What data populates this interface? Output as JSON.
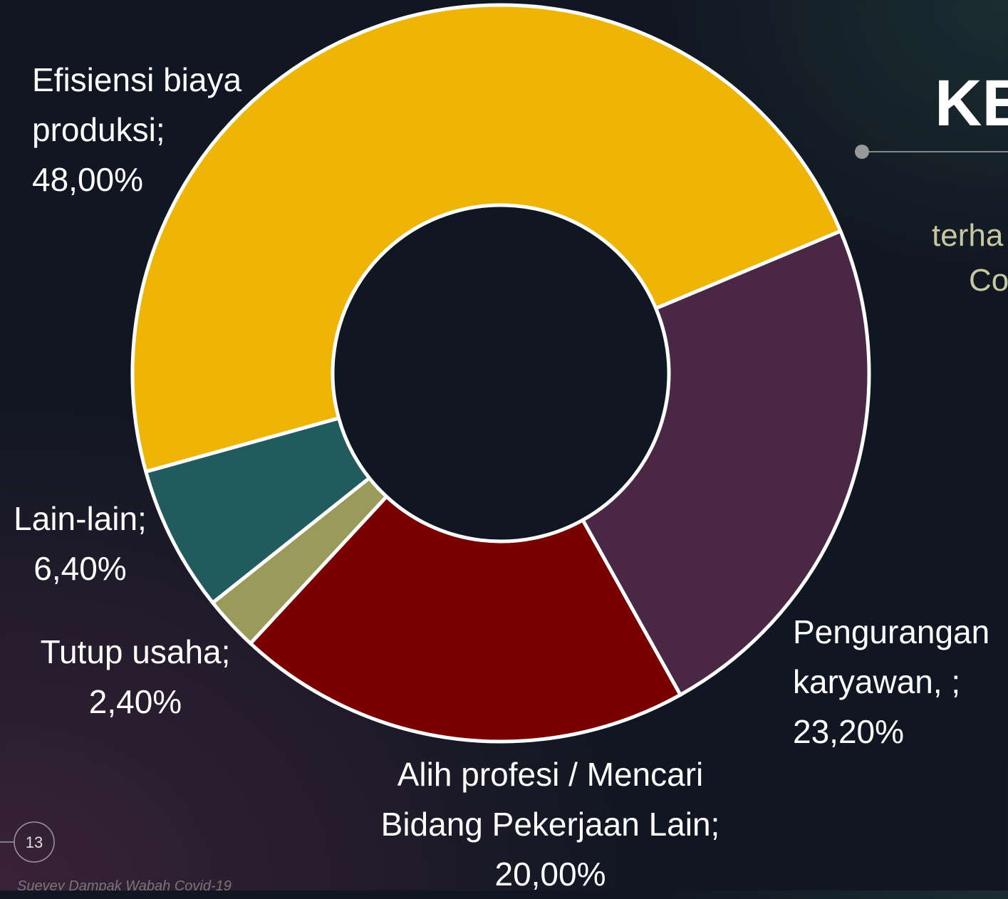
{
  "slide": {
    "title": "KE",
    "subtitle_lines": [
      "terha",
      "Co"
    ],
    "page_number": "13",
    "footer": "Suevey Dampak Wabah Covid-19"
  },
  "chart_data": {
    "type": "pie",
    "donut": true,
    "categories": [
      "Efisiensi biaya produksi;",
      "Pengurangan karyawan,   ;",
      "Alih profesi / Mencari Bidang Pekerjaan Lain;",
      "Tutup usaha;",
      "Lain-lain;"
    ],
    "values": [
      48,
      23.2,
      20,
      2.4,
      6.4
    ],
    "value_labels": [
      "48,00%",
      "23,20%",
      "20,00%",
      "2,40%",
      "6,40%"
    ],
    "colors": [
      "#efb506",
      "#4a2845",
      "#7a0000",
      "#9a9a5a",
      "#215b5e"
    ]
  }
}
